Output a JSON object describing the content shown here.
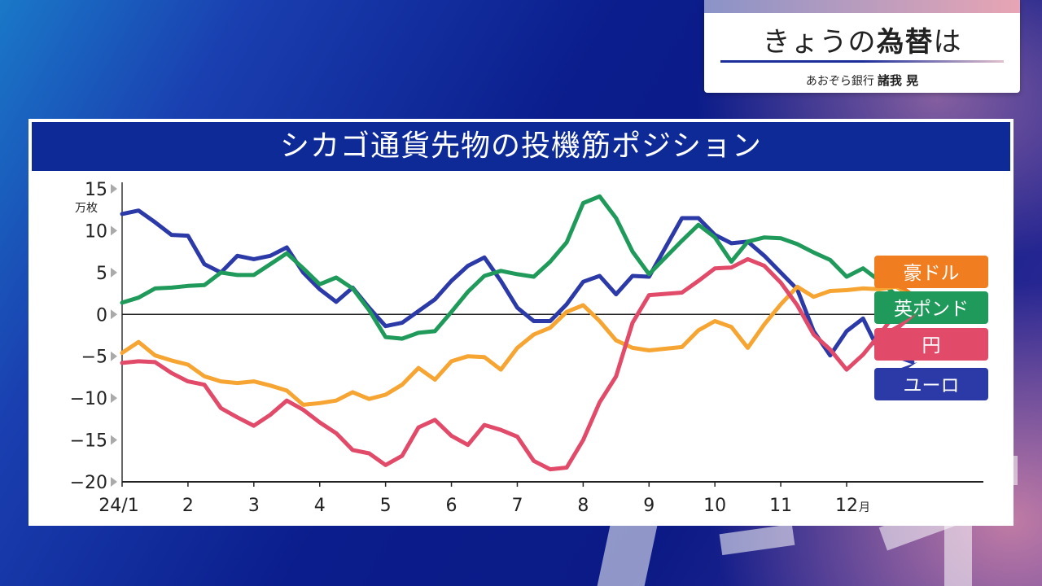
{
  "header": {
    "title_prefix": "きょうの",
    "title_bold": "為替",
    "title_suffix": "は",
    "bank": "あおぞら銀行",
    "presenter": "諸我 晃"
  },
  "chart_title": "シカゴ通貨先物の投機筋ポジション",
  "chart_data": {
    "type": "line",
    "title": "シカゴ通貨先物の投機筋ポジション",
    "ylabel": "万枚",
    "xlabel_suffix": "月",
    "ylim": [
      -20,
      15
    ],
    "yticks": [
      15,
      10,
      5,
      0,
      -5,
      -10,
      -15,
      -20
    ],
    "ytick_labels": [
      "15",
      "10",
      "5",
      "0",
      "−5",
      "−10",
      "−15",
      "−20"
    ],
    "xlim": [
      0,
      13.5
    ],
    "x_ticks": [
      {
        "x": 0,
        "label": "24/1"
      },
      {
        "x": 1,
        "label": "2"
      },
      {
        "x": 2,
        "label": "3"
      },
      {
        "x": 3,
        "label": "4"
      },
      {
        "x": 4,
        "label": "5"
      },
      {
        "x": 5,
        "label": "6"
      },
      {
        "x": 6,
        "label": "7"
      },
      {
        "x": 7,
        "label": "8"
      },
      {
        "x": 8,
        "label": "9"
      },
      {
        "x": 9,
        "label": "10"
      },
      {
        "x": 10,
        "label": "11"
      },
      {
        "x": 11,
        "label": "12"
      }
    ],
    "grid": false,
    "legend_position": "right",
    "series": [
      {
        "name": "ユーロ",
        "color": "#2c3aa8",
        "points": [
          [
            0.0,
            12.0
          ],
          [
            0.25,
            12.4
          ],
          [
            0.5,
            11.0
          ],
          [
            0.75,
            9.5
          ],
          [
            1.0,
            9.4
          ],
          [
            1.25,
            6.0
          ],
          [
            1.5,
            5.0
          ],
          [
            1.75,
            7.0
          ],
          [
            2.0,
            6.6
          ],
          [
            2.25,
            7.0
          ],
          [
            2.5,
            8.0
          ],
          [
            2.75,
            5.0
          ],
          [
            3.0,
            3.0
          ],
          [
            3.25,
            1.5
          ],
          [
            3.5,
            3.2
          ],
          [
            3.75,
            0.8
          ],
          [
            4.0,
            -1.4
          ],
          [
            4.25,
            -1.0
          ],
          [
            4.5,
            0.4
          ],
          [
            4.75,
            1.8
          ],
          [
            5.0,
            4.0
          ],
          [
            5.25,
            5.8
          ],
          [
            5.5,
            6.8
          ],
          [
            5.75,
            4.0
          ],
          [
            6.0,
            0.8
          ],
          [
            6.25,
            -0.8
          ],
          [
            6.5,
            -0.8
          ],
          [
            6.75,
            1.2
          ],
          [
            7.0,
            3.9
          ],
          [
            7.25,
            4.6
          ],
          [
            7.5,
            2.4
          ],
          [
            7.75,
            4.6
          ],
          [
            8.0,
            4.5
          ],
          [
            8.5,
            11.5
          ],
          [
            8.75,
            11.5
          ],
          [
            9.0,
            9.5
          ],
          [
            9.25,
            8.5
          ],
          [
            9.5,
            8.7
          ],
          [
            9.75,
            7.0
          ],
          [
            10.0,
            5.0
          ],
          [
            10.25,
            3.0
          ],
          [
            10.5,
            -2.0
          ],
          [
            10.75,
            -4.9
          ],
          [
            11.0,
            -2.0
          ],
          [
            11.25,
            -0.5
          ],
          [
            11.5,
            -4.5
          ],
          [
            11.75,
            -5.0
          ],
          [
            12.0,
            -5.7
          ]
        ]
      },
      {
        "name": "英ポンド",
        "color": "#1f9a5a",
        "points": [
          [
            0.0,
            1.4
          ],
          [
            0.25,
            2.0
          ],
          [
            0.5,
            3.1
          ],
          [
            0.75,
            3.2
          ],
          [
            1.0,
            3.4
          ],
          [
            1.25,
            3.5
          ],
          [
            1.5,
            5.0
          ],
          [
            1.75,
            4.7
          ],
          [
            2.0,
            4.7
          ],
          [
            2.25,
            6.0
          ],
          [
            2.5,
            7.3
          ],
          [
            2.75,
            5.5
          ],
          [
            3.0,
            3.6
          ],
          [
            3.25,
            4.4
          ],
          [
            3.5,
            3.1
          ],
          [
            3.75,
            0.5
          ],
          [
            4.0,
            -2.7
          ],
          [
            4.25,
            -2.9
          ],
          [
            4.5,
            -2.2
          ],
          [
            4.75,
            -2.0
          ],
          [
            5.0,
            0.3
          ],
          [
            5.25,
            2.7
          ],
          [
            5.5,
            4.6
          ],
          [
            5.75,
            5.2
          ],
          [
            6.0,
            4.8
          ],
          [
            6.25,
            4.5
          ],
          [
            6.5,
            6.3
          ],
          [
            6.75,
            8.6
          ],
          [
            7.0,
            13.3
          ],
          [
            7.25,
            14.1
          ],
          [
            7.5,
            11.5
          ],
          [
            7.75,
            7.5
          ],
          [
            8.0,
            4.8
          ],
          [
            8.5,
            8.8
          ],
          [
            8.75,
            10.7
          ],
          [
            9.0,
            9.2
          ],
          [
            9.25,
            6.3
          ],
          [
            9.5,
            8.7
          ],
          [
            9.75,
            9.2
          ],
          [
            10.0,
            9.1
          ],
          [
            10.25,
            8.4
          ],
          [
            10.5,
            7.4
          ],
          [
            10.75,
            6.5
          ],
          [
            11.0,
            4.5
          ],
          [
            11.25,
            5.5
          ],
          [
            11.5,
            4.0
          ],
          [
            11.75,
            2.3
          ],
          [
            12.0,
            2.0
          ]
        ]
      },
      {
        "name": "豪ドル",
        "color": "#f6a532",
        "points": [
          [
            0.0,
            -4.6
          ],
          [
            0.25,
            -3.3
          ],
          [
            0.5,
            -4.9
          ],
          [
            0.75,
            -5.5
          ],
          [
            1.0,
            -6.0
          ],
          [
            1.25,
            -7.4
          ],
          [
            1.5,
            -8.0
          ],
          [
            1.75,
            -8.2
          ],
          [
            2.0,
            -8.0
          ],
          [
            2.25,
            -8.5
          ],
          [
            2.5,
            -9.1
          ],
          [
            2.75,
            -10.8
          ],
          [
            3.0,
            -10.6
          ],
          [
            3.25,
            -10.3
          ],
          [
            3.5,
            -9.3
          ],
          [
            3.75,
            -10.1
          ],
          [
            4.0,
            -9.6
          ],
          [
            4.25,
            -8.4
          ],
          [
            4.5,
            -6.4
          ],
          [
            4.75,
            -7.8
          ],
          [
            5.0,
            -5.6
          ],
          [
            5.25,
            -5.0
          ],
          [
            5.5,
            -5.1
          ],
          [
            5.75,
            -6.6
          ],
          [
            6.0,
            -4.0
          ],
          [
            6.25,
            -2.4
          ],
          [
            6.5,
            -1.6
          ],
          [
            6.75,
            0.3
          ],
          [
            7.0,
            1.1
          ],
          [
            7.25,
            -0.8
          ],
          [
            7.5,
            -3.1
          ],
          [
            7.75,
            -4.0
          ],
          [
            8.0,
            -4.3
          ],
          [
            8.5,
            -3.9
          ],
          [
            8.75,
            -1.9
          ],
          [
            9.0,
            -0.8
          ],
          [
            9.25,
            -1.5
          ],
          [
            9.5,
            -4.0
          ],
          [
            9.75,
            -1.2
          ],
          [
            10.0,
            1.2
          ],
          [
            10.25,
            3.3
          ],
          [
            10.5,
            2.1
          ],
          [
            10.75,
            2.8
          ],
          [
            11.0,
            2.9
          ],
          [
            11.25,
            3.1
          ],
          [
            11.5,
            3.0
          ],
          [
            11.75,
            3.3
          ],
          [
            12.0,
            2.2
          ]
        ]
      },
      {
        "name": "円",
        "color": "#e14a69",
        "points": [
          [
            0.0,
            -5.8
          ],
          [
            0.25,
            -5.6
          ],
          [
            0.5,
            -5.7
          ],
          [
            0.75,
            -7.0
          ],
          [
            1.0,
            -8.0
          ],
          [
            1.25,
            -8.4
          ],
          [
            1.5,
            -11.2
          ],
          [
            1.75,
            -12.3
          ],
          [
            2.0,
            -13.3
          ],
          [
            2.25,
            -12.0
          ],
          [
            2.5,
            -10.3
          ],
          [
            2.75,
            -11.4
          ],
          [
            3.0,
            -12.9
          ],
          [
            3.25,
            -14.2
          ],
          [
            3.5,
            -16.2
          ],
          [
            3.75,
            -16.6
          ],
          [
            4.0,
            -18.0
          ],
          [
            4.25,
            -16.9
          ],
          [
            4.5,
            -13.5
          ],
          [
            4.75,
            -12.6
          ],
          [
            5.0,
            -14.5
          ],
          [
            5.25,
            -15.6
          ],
          [
            5.5,
            -13.2
          ],
          [
            5.75,
            -13.8
          ],
          [
            6.0,
            -14.6
          ],
          [
            6.25,
            -17.5
          ],
          [
            6.5,
            -18.5
          ],
          [
            6.75,
            -18.3
          ],
          [
            7.0,
            -15.0
          ],
          [
            7.25,
            -10.5
          ],
          [
            7.5,
            -7.4
          ],
          [
            7.75,
            -1.0
          ],
          [
            8.0,
            2.3
          ],
          [
            8.5,
            2.6
          ],
          [
            8.75,
            4.0
          ],
          [
            9.0,
            5.5
          ],
          [
            9.25,
            5.6
          ],
          [
            9.5,
            6.6
          ],
          [
            9.75,
            5.8
          ],
          [
            10.0,
            3.8
          ],
          [
            10.25,
            1.1
          ],
          [
            10.5,
            -2.4
          ],
          [
            10.75,
            -4.2
          ],
          [
            11.0,
            -6.6
          ],
          [
            11.25,
            -4.8
          ],
          [
            11.5,
            -2.4
          ],
          [
            11.75,
            0.2
          ],
          [
            12.0,
            0.1
          ]
        ]
      }
    ],
    "legend": [
      {
        "label": "豪ドル",
        "color": "#f07d1f"
      },
      {
        "label": "英ポンド",
        "color": "#1f9a5a"
      },
      {
        "label": "円",
        "color": "#e14a69"
      },
      {
        "label": "ユーロ",
        "color": "#2c3aa8"
      }
    ]
  }
}
